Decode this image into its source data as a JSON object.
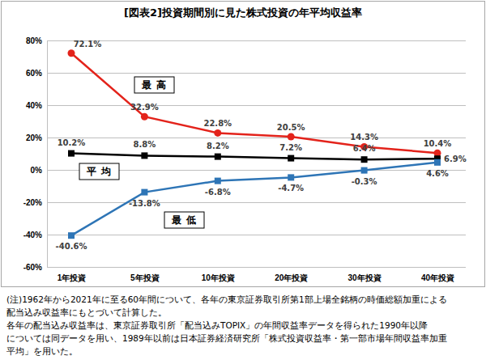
{
  "chart_data": {
    "type": "line",
    "title": "[図表2]投資期間別に見た株式投資の年平均収益率",
    "categories": [
      "1年投資",
      "5年投資",
      "10年投資",
      "20年投資",
      "30年投資",
      "40年投資"
    ],
    "series": [
      {
        "name": "最高",
        "color": "#e3231b",
        "marker": "circle",
        "values": [
          72.1,
          32.9,
          22.8,
          20.5,
          14.3,
          10.4
        ],
        "value_labels": [
          "72.1%",
          "32.9%",
          "22.8%",
          "20.5%",
          "14.3%",
          "10.4%"
        ]
      },
      {
        "name": "平均",
        "color": "#000000",
        "marker": "square",
        "values": [
          10.2,
          8.8,
          8.2,
          7.2,
          6.4,
          6.9
        ],
        "value_labels": [
          "10.2%",
          "8.8%",
          "8.2%",
          "7.2%",
          "6.4%",
          "6.9%"
        ]
      },
      {
        "name": "最低",
        "color": "#2e75b6",
        "marker": "square",
        "values": [
          -40.6,
          -13.8,
          -6.8,
          -4.7,
          -0.3,
          4.6
        ],
        "value_labels": [
          "-40.6%",
          "-13.8%",
          "-6.8%",
          "-4.7%",
          "-0.3%",
          "4.6%"
        ]
      }
    ],
    "ylim": [
      -60,
      80
    ],
    "yticks": [
      {
        "value": -60,
        "label": "-60%"
      },
      {
        "value": -40,
        "label": "-40%"
      },
      {
        "value": -20,
        "label": "-20%"
      },
      {
        "value": 0,
        "label": "0%"
      },
      {
        "value": 20,
        "label": "20%"
      },
      {
        "value": 40,
        "label": "40%"
      },
      {
        "value": 60,
        "label": "60%"
      },
      {
        "value": 80,
        "label": "80%"
      }
    ],
    "grid": true,
    "data_labels": true,
    "notes": [
      "(注)1962年から2021年に至る60年間について、各年の東京証券取引所第1部上場全銘柄の時価総額加重による",
      "配当込み収益率にもとづいて計算した。",
      "各年の配当込み収益率は、東京証券取引所「配当込みTOPIX」の年間収益率データを得られた1990年以降",
      "については同データを用い、1989年以前は日本証券経済研究所「株式投資収益率・第一部市場年間収益率加重",
      "平均」を用いた。"
    ]
  }
}
